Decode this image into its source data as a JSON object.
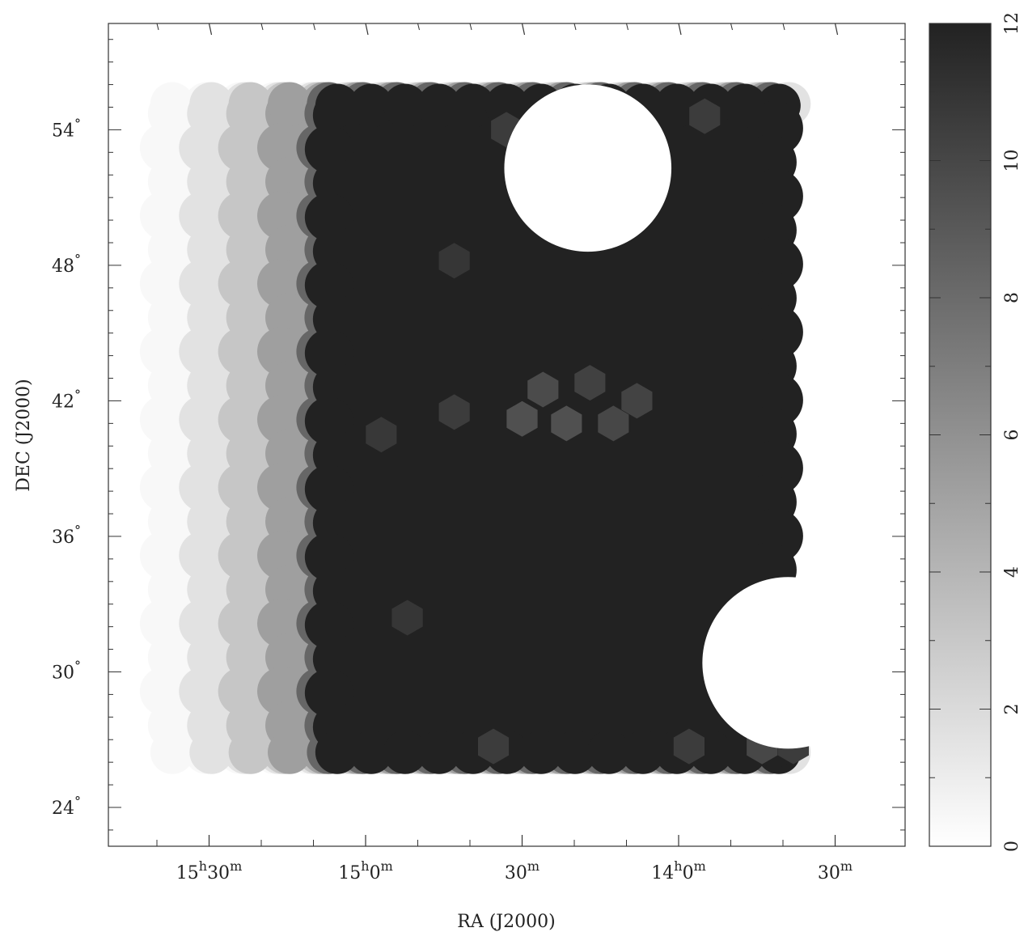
{
  "chart_data": {
    "type": "heatmap",
    "title": "",
    "xlabel": "RA (J2000)",
    "ylabel": "DEC (J2000)",
    "x_axis": {
      "reversed": true,
      "unit": "minutes of RA",
      "range_min": [
        822,
        958
      ],
      "major_ticks": [
        {
          "min": 930,
          "h": "15",
          "hsup": "h",
          "m": "30",
          "msup": "m"
        },
        {
          "min": 900,
          "h": "15",
          "hsup": "h",
          "m": "0",
          "msup": "m"
        },
        {
          "min": 870,
          "h": "",
          "hsup": "",
          "m": "30",
          "msup": "m"
        },
        {
          "min": 840,
          "h": "14",
          "hsup": "h",
          "m": "0",
          "msup": "m"
        },
        {
          "min": 810,
          "h": "",
          "hsup": "",
          "m": "30",
          "msup": "m"
        }
      ],
      "minor_ticks": [
        940,
        920,
        910,
        890,
        880,
        860,
        850,
        830,
        820
      ]
    },
    "y_axis": {
      "range_deg": [
        22,
        59
      ],
      "major_ticks": [
        {
          "deg": 24,
          "label": "24"
        },
        {
          "deg": 30,
          "label": "30"
        },
        {
          "deg": 36,
          "label": "36"
        },
        {
          "deg": 42,
          "label": "42"
        },
        {
          "deg": 48,
          "label": "48"
        },
        {
          "deg": 54,
          "label": "54"
        }
      ],
      "degree_symbol": "°",
      "minor_step": 1
    },
    "colorbar": {
      "min": 0,
      "max": 12,
      "ticks": [
        "0",
        "2",
        "4",
        "6",
        "8",
        "10",
        "12"
      ],
      "colormap": "grayscale",
      "low_color": "#ffffff",
      "high_color": "#222222"
    },
    "coverage_columns": [
      {
        "ra_min": 938.0,
        "dec_min": 26.3,
        "dec_max": 55.5,
        "value": 0.4
      },
      {
        "ra_min": 930.5,
        "dec_min": 26.3,
        "dec_max": 55.5,
        "value": 1.6
      },
      {
        "ra_min": 923.0,
        "dec_min": 26.3,
        "dec_max": 55.5,
        "value": 3.1
      },
      {
        "ra_min": 915.5,
        "dec_min": 26.3,
        "dec_max": 55.5,
        "value": 5.2
      },
      {
        "ra_min": 908.0,
        "dec_min": 26.3,
        "dec_max": 55.5,
        "value": 8.3
      }
    ],
    "full_coverage_region": {
      "ra_min": [
        818,
        907
      ],
      "dec_deg": [
        26.3,
        55.5
      ],
      "value": 12
    },
    "reduced_patches": [
      {
        "ra_min": 870.0,
        "dec_deg": 41.2,
        "value": 9.5
      },
      {
        "ra_min": 866.0,
        "dec_deg": 42.5,
        "value": 9.8
      },
      {
        "ra_min": 861.5,
        "dec_deg": 41.0,
        "value": 9.5
      },
      {
        "ra_min": 857.0,
        "dec_deg": 42.8,
        "value": 10.3
      },
      {
        "ra_min": 852.5,
        "dec_deg": 41.0,
        "value": 10.0
      },
      {
        "ra_min": 848.0,
        "dec_deg": 42.0,
        "value": 10.2
      },
      {
        "ra_min": 883.0,
        "dec_deg": 41.5,
        "value": 10.6
      },
      {
        "ra_min": 897.0,
        "dec_deg": 40.5,
        "value": 10.8
      },
      {
        "ra_min": 892.0,
        "dec_deg": 32.4,
        "value": 10.9
      },
      {
        "ra_min": 883.0,
        "dec_deg": 48.2,
        "value": 10.9
      },
      {
        "ra_min": 873.0,
        "dec_deg": 54.0,
        "value": 10.6
      },
      {
        "ra_min": 835.0,
        "dec_deg": 54.6,
        "value": 10.6
      },
      {
        "ra_min": 875.5,
        "dec_deg": 26.7,
        "value": 10.6
      },
      {
        "ra_min": 838.0,
        "dec_deg": 26.7,
        "value": 10.6
      },
      {
        "ra_min": 824.0,
        "dec_deg": 26.7,
        "value": 10.0
      },
      {
        "ra_min": 818.0,
        "dec_deg": 26.7,
        "value": 10.6
      }
    ],
    "gaps": [
      {
        "ra_min": 857.4,
        "dec_deg": 52.3,
        "radius_deg": 3.7
      },
      {
        "ra_min": 819.0,
        "dec_deg": 30.4,
        "radius_deg": 3.8
      }
    ]
  }
}
